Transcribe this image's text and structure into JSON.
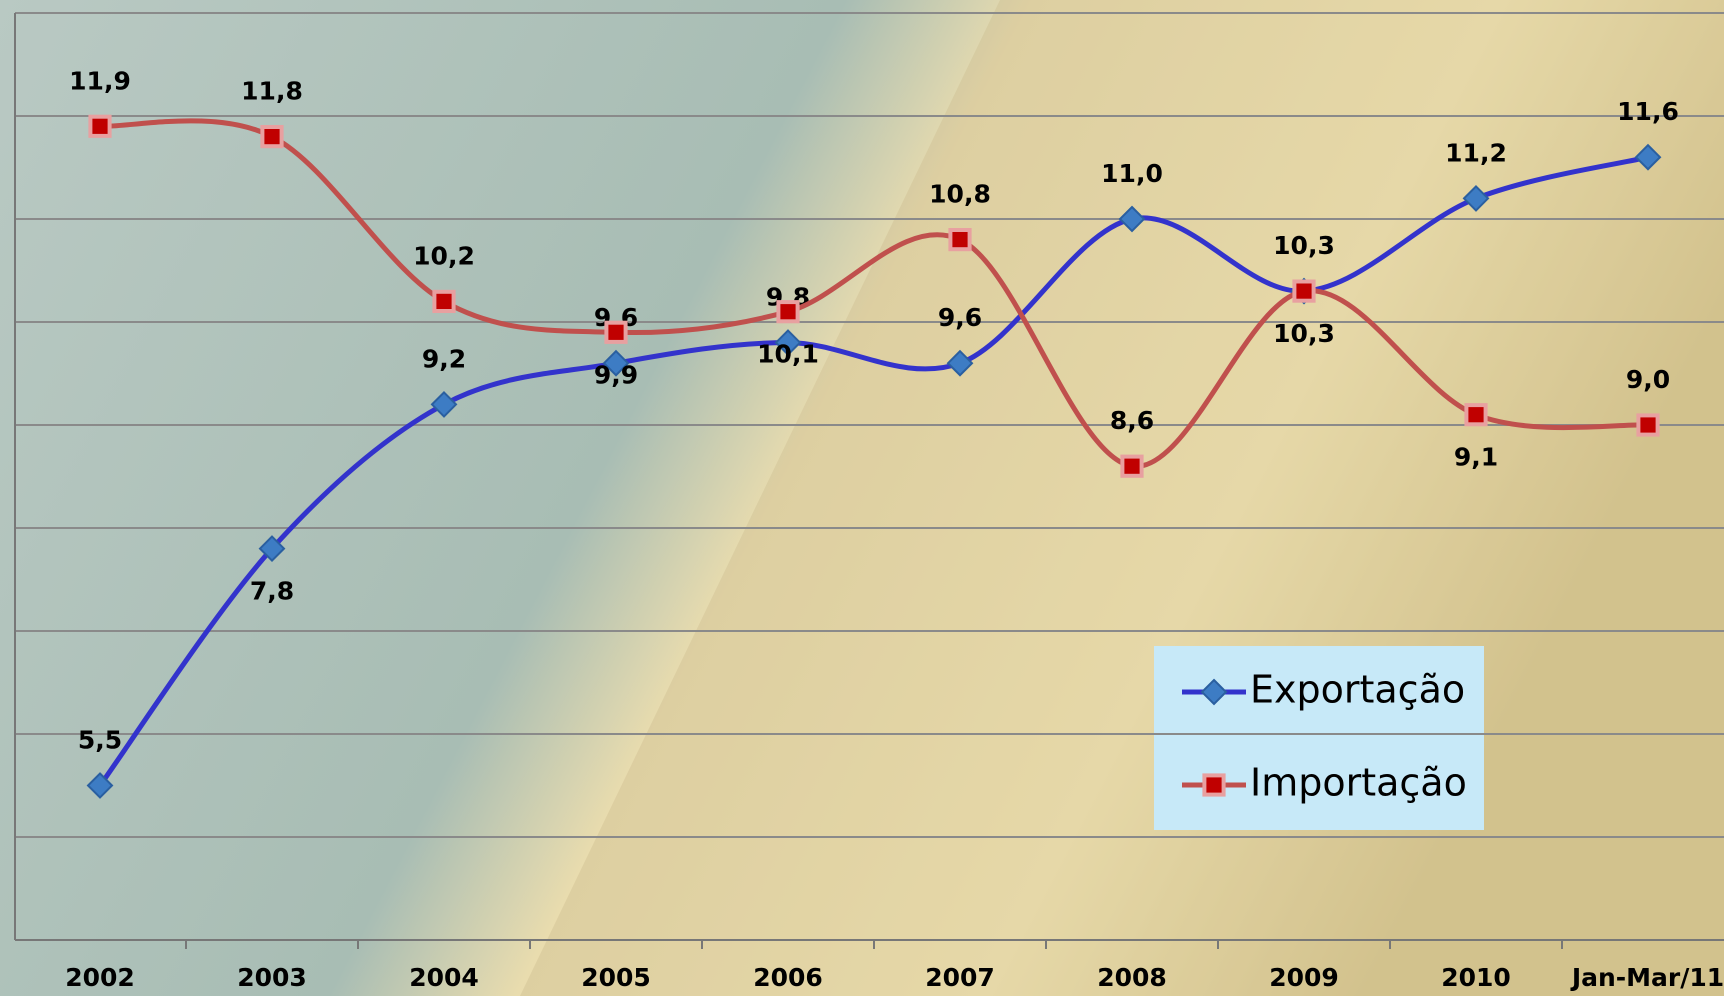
{
  "chart_data": {
    "type": "line",
    "categories": [
      "2002",
      "2003",
      "2004",
      "2005",
      "2006",
      "2007",
      "2008",
      "2009",
      "2010",
      "Jan-Mar/11"
    ],
    "series": [
      {
        "name": "Exportação",
        "color": "#3333cc",
        "marker": "diamond",
        "marker_color": "#3d7cc4",
        "values": [
          5.5,
          7.8,
          9.2,
          9.6,
          9.8,
          9.6,
          11.0,
          10.3,
          11.2,
          11.6
        ],
        "value_labels": [
          "5,5",
          "7,8",
          "9,2",
          "9,6",
          "9,8",
          "9,6",
          "11,0",
          "10,3",
          "11,2",
          "11,6"
        ]
      },
      {
        "name": "Importação",
        "color": "#c0504d",
        "marker": "square",
        "marker_color": "#c00000",
        "values": [
          11.9,
          11.8,
          10.2,
          9.9,
          10.1,
          10.8,
          8.6,
          10.3,
          9.1,
          9.0
        ],
        "value_labels": [
          "11,9",
          "11,8",
          "10,2",
          "9,9",
          "10,1",
          "10,8",
          "8,6",
          "10,3",
          "9,1",
          "9,0"
        ]
      }
    ],
    "ylim": [
      4,
      13
    ],
    "yticks": [
      4,
      5,
      6,
      7,
      8,
      9,
      10,
      11,
      12,
      13
    ],
    "show_ytick_labels": false,
    "grid": true,
    "legend": "lower-right"
  }
}
